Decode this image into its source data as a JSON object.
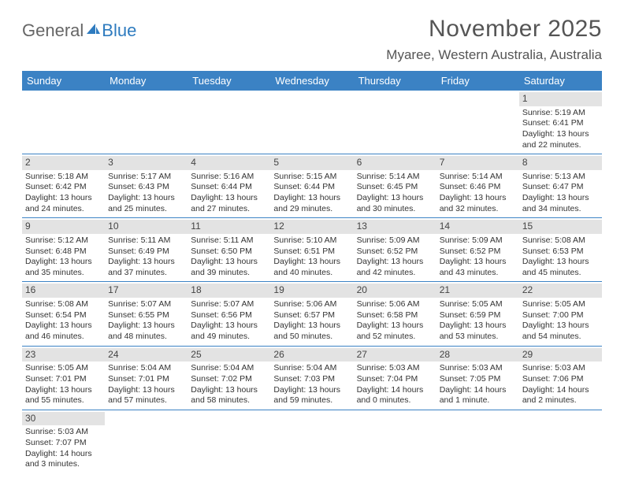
{
  "logo": {
    "part1": "General",
    "part2": "Blue"
  },
  "title": "November 2025",
  "location": "Myaree, Western Australia, Australia",
  "colors": {
    "header_bg": "#3b82c4",
    "header_text": "#ffffff",
    "daynum_bg": "#e3e3e3",
    "rule": "#3b82c4",
    "title_color": "#555555",
    "body_text": "#333333"
  },
  "day_headers": [
    "Sunday",
    "Monday",
    "Tuesday",
    "Wednesday",
    "Thursday",
    "Friday",
    "Saturday"
  ],
  "weeks": [
    [
      {
        "n": "",
        "sunrise": "",
        "sunset": "",
        "daylight": ""
      },
      {
        "n": "",
        "sunrise": "",
        "sunset": "",
        "daylight": ""
      },
      {
        "n": "",
        "sunrise": "",
        "sunset": "",
        "daylight": ""
      },
      {
        "n": "",
        "sunrise": "",
        "sunset": "",
        "daylight": ""
      },
      {
        "n": "",
        "sunrise": "",
        "sunset": "",
        "daylight": ""
      },
      {
        "n": "",
        "sunrise": "",
        "sunset": "",
        "daylight": ""
      },
      {
        "n": "1",
        "sunrise": "Sunrise: 5:19 AM",
        "sunset": "Sunset: 6:41 PM",
        "daylight": "Daylight: 13 hours and 22 minutes."
      }
    ],
    [
      {
        "n": "2",
        "sunrise": "Sunrise: 5:18 AM",
        "sunset": "Sunset: 6:42 PM",
        "daylight": "Daylight: 13 hours and 24 minutes."
      },
      {
        "n": "3",
        "sunrise": "Sunrise: 5:17 AM",
        "sunset": "Sunset: 6:43 PM",
        "daylight": "Daylight: 13 hours and 25 minutes."
      },
      {
        "n": "4",
        "sunrise": "Sunrise: 5:16 AM",
        "sunset": "Sunset: 6:44 PM",
        "daylight": "Daylight: 13 hours and 27 minutes."
      },
      {
        "n": "5",
        "sunrise": "Sunrise: 5:15 AM",
        "sunset": "Sunset: 6:44 PM",
        "daylight": "Daylight: 13 hours and 29 minutes."
      },
      {
        "n": "6",
        "sunrise": "Sunrise: 5:14 AM",
        "sunset": "Sunset: 6:45 PM",
        "daylight": "Daylight: 13 hours and 30 minutes."
      },
      {
        "n": "7",
        "sunrise": "Sunrise: 5:14 AM",
        "sunset": "Sunset: 6:46 PM",
        "daylight": "Daylight: 13 hours and 32 minutes."
      },
      {
        "n": "8",
        "sunrise": "Sunrise: 5:13 AM",
        "sunset": "Sunset: 6:47 PM",
        "daylight": "Daylight: 13 hours and 34 minutes."
      }
    ],
    [
      {
        "n": "9",
        "sunrise": "Sunrise: 5:12 AM",
        "sunset": "Sunset: 6:48 PM",
        "daylight": "Daylight: 13 hours and 35 minutes."
      },
      {
        "n": "10",
        "sunrise": "Sunrise: 5:11 AM",
        "sunset": "Sunset: 6:49 PM",
        "daylight": "Daylight: 13 hours and 37 minutes."
      },
      {
        "n": "11",
        "sunrise": "Sunrise: 5:11 AM",
        "sunset": "Sunset: 6:50 PM",
        "daylight": "Daylight: 13 hours and 39 minutes."
      },
      {
        "n": "12",
        "sunrise": "Sunrise: 5:10 AM",
        "sunset": "Sunset: 6:51 PM",
        "daylight": "Daylight: 13 hours and 40 minutes."
      },
      {
        "n": "13",
        "sunrise": "Sunrise: 5:09 AM",
        "sunset": "Sunset: 6:52 PM",
        "daylight": "Daylight: 13 hours and 42 minutes."
      },
      {
        "n": "14",
        "sunrise": "Sunrise: 5:09 AM",
        "sunset": "Sunset: 6:52 PM",
        "daylight": "Daylight: 13 hours and 43 minutes."
      },
      {
        "n": "15",
        "sunrise": "Sunrise: 5:08 AM",
        "sunset": "Sunset: 6:53 PM",
        "daylight": "Daylight: 13 hours and 45 minutes."
      }
    ],
    [
      {
        "n": "16",
        "sunrise": "Sunrise: 5:08 AM",
        "sunset": "Sunset: 6:54 PM",
        "daylight": "Daylight: 13 hours and 46 minutes."
      },
      {
        "n": "17",
        "sunrise": "Sunrise: 5:07 AM",
        "sunset": "Sunset: 6:55 PM",
        "daylight": "Daylight: 13 hours and 48 minutes."
      },
      {
        "n": "18",
        "sunrise": "Sunrise: 5:07 AM",
        "sunset": "Sunset: 6:56 PM",
        "daylight": "Daylight: 13 hours and 49 minutes."
      },
      {
        "n": "19",
        "sunrise": "Sunrise: 5:06 AM",
        "sunset": "Sunset: 6:57 PM",
        "daylight": "Daylight: 13 hours and 50 minutes."
      },
      {
        "n": "20",
        "sunrise": "Sunrise: 5:06 AM",
        "sunset": "Sunset: 6:58 PM",
        "daylight": "Daylight: 13 hours and 52 minutes."
      },
      {
        "n": "21",
        "sunrise": "Sunrise: 5:05 AM",
        "sunset": "Sunset: 6:59 PM",
        "daylight": "Daylight: 13 hours and 53 minutes."
      },
      {
        "n": "22",
        "sunrise": "Sunrise: 5:05 AM",
        "sunset": "Sunset: 7:00 PM",
        "daylight": "Daylight: 13 hours and 54 minutes."
      }
    ],
    [
      {
        "n": "23",
        "sunrise": "Sunrise: 5:05 AM",
        "sunset": "Sunset: 7:01 PM",
        "daylight": "Daylight: 13 hours and 55 minutes."
      },
      {
        "n": "24",
        "sunrise": "Sunrise: 5:04 AM",
        "sunset": "Sunset: 7:01 PM",
        "daylight": "Daylight: 13 hours and 57 minutes."
      },
      {
        "n": "25",
        "sunrise": "Sunrise: 5:04 AM",
        "sunset": "Sunset: 7:02 PM",
        "daylight": "Daylight: 13 hours and 58 minutes."
      },
      {
        "n": "26",
        "sunrise": "Sunrise: 5:04 AM",
        "sunset": "Sunset: 7:03 PM",
        "daylight": "Daylight: 13 hours and 59 minutes."
      },
      {
        "n": "27",
        "sunrise": "Sunrise: 5:03 AM",
        "sunset": "Sunset: 7:04 PM",
        "daylight": "Daylight: 14 hours and 0 minutes."
      },
      {
        "n": "28",
        "sunrise": "Sunrise: 5:03 AM",
        "sunset": "Sunset: 7:05 PM",
        "daylight": "Daylight: 14 hours and 1 minute."
      },
      {
        "n": "29",
        "sunrise": "Sunrise: 5:03 AM",
        "sunset": "Sunset: 7:06 PM",
        "daylight": "Daylight: 14 hours and 2 minutes."
      }
    ],
    [
      {
        "n": "30",
        "sunrise": "Sunrise: 5:03 AM",
        "sunset": "Sunset: 7:07 PM",
        "daylight": "Daylight: 14 hours and 3 minutes."
      },
      {
        "n": "",
        "sunrise": "",
        "sunset": "",
        "daylight": ""
      },
      {
        "n": "",
        "sunrise": "",
        "sunset": "",
        "daylight": ""
      },
      {
        "n": "",
        "sunrise": "",
        "sunset": "",
        "daylight": ""
      },
      {
        "n": "",
        "sunrise": "",
        "sunset": "",
        "daylight": ""
      },
      {
        "n": "",
        "sunrise": "",
        "sunset": "",
        "daylight": ""
      },
      {
        "n": "",
        "sunrise": "",
        "sunset": "",
        "daylight": ""
      }
    ]
  ]
}
